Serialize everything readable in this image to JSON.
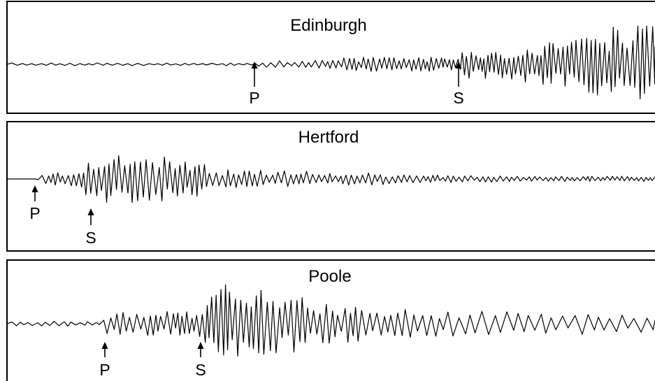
{
  "panels": [
    {
      "title": "Edinburgh",
      "markers": [
        {
          "label": "P"
        },
        {
          "label": "S"
        }
      ]
    },
    {
      "title": "Hertford",
      "markers": [
        {
          "label": "P"
        },
        {
          "label": "S"
        }
      ]
    },
    {
      "title": "Poole",
      "markers": [
        {
          "label": "P"
        },
        {
          "label": "S"
        }
      ]
    }
  ],
  "colors": {
    "trace": "#000000",
    "background": "#ffffff"
  }
}
